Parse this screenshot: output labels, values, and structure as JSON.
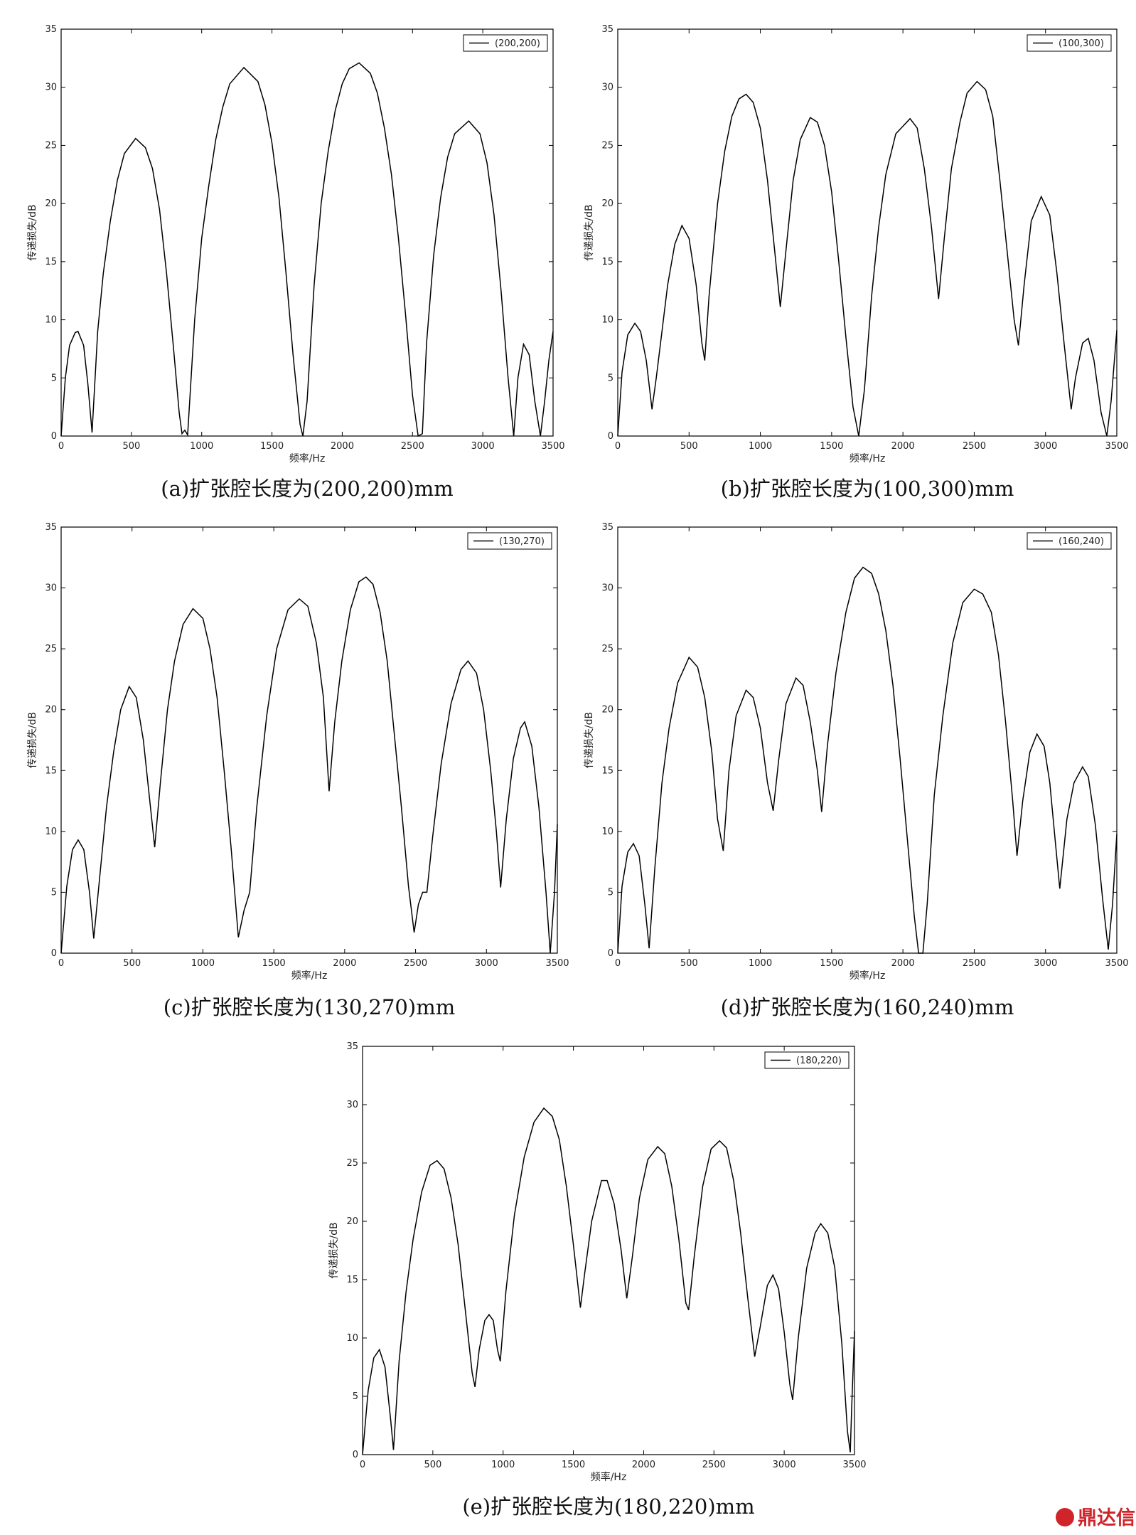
{
  "chart_data": [
    {
      "type": "line",
      "caption": "(a)扩张腔长度为(200,200)mm",
      "xlabel": "频率/Hz",
      "ylabel": "传递损失/dB",
      "legend": "upper right",
      "xlim": [
        0,
        3500
      ],
      "ylim": [
        0,
        35
      ],
      "xticks": [
        0,
        500,
        1000,
        1500,
        2000,
        2500,
        3000,
        3500
      ],
      "yticks": [
        0,
        5,
        10,
        15,
        20,
        25,
        30,
        35
      ],
      "x": [
        0,
        30,
        60,
        100,
        120,
        160,
        190,
        220,
        260,
        300,
        350,
        400,
        450,
        530,
        600,
        650,
        700,
        750,
        800,
        840,
        860,
        880,
        900,
        950,
        1000,
        1050,
        1100,
        1150,
        1200,
        1300,
        1400,
        1450,
        1500,
        1550,
        1600,
        1650,
        1700,
        1720,
        1750,
        1800,
        1850,
        1900,
        1950,
        2000,
        2050,
        2120,
        2200,
        2250,
        2300,
        2350,
        2400,
        2450,
        2500,
        2540,
        2570,
        2600,
        2650,
        2700,
        2750,
        2800,
        2900,
        2980,
        3030,
        3080,
        3130,
        3180,
        3220,
        3250,
        3290,
        3330,
        3370,
        3410,
        3440,
        3470,
        3500
      ],
      "series": [
        {
          "name": "(200,200)",
          "color": "#000000",
          "values": [
            0,
            5,
            7.8,
            8.9,
            9,
            7.8,
            4.5,
            0.3,
            9,
            14,
            18.5,
            22,
            24.3,
            25.6,
            24.8,
            23,
            19.5,
            14,
            7.5,
            2,
            0.2,
            0.5,
            0.1,
            10,
            17,
            21.5,
            25.5,
            28.3,
            30.3,
            31.7,
            30.5,
            28.5,
            25.2,
            20.5,
            14,
            7,
            1,
            0,
            3,
            13,
            20,
            24.5,
            28,
            30.3,
            31.6,
            32.1,
            31.2,
            29.5,
            26.5,
            22.5,
            17,
            10.5,
            3.5,
            0,
            0.2,
            8,
            15.5,
            20.5,
            24,
            26,
            27.1,
            26,
            23.5,
            19,
            12.5,
            5,
            0,
            5,
            7.9,
            7,
            3,
            0,
            3,
            6.5,
            9
          ]
        }
      ]
    },
    {
      "type": "line",
      "caption": "(b)扩张腔长度为(100,300)mm",
      "xlabel": "频率/Hz",
      "ylabel": "传递损失/dB",
      "legend": "upper right",
      "xlim": [
        0,
        3500
      ],
      "ylim": [
        0,
        35
      ],
      "xticks": [
        0,
        500,
        1000,
        1500,
        2000,
        2500,
        3000,
        3500
      ],
      "yticks": [
        0,
        5,
        10,
        15,
        20,
        25,
        30,
        35
      ],
      "x": [
        0,
        30,
        70,
        120,
        160,
        200,
        240,
        270,
        310,
        350,
        400,
        450,
        500,
        550,
        590,
        610,
        640,
        700,
        750,
        800,
        850,
        900,
        950,
        1000,
        1050,
        1100,
        1140,
        1180,
        1230,
        1280,
        1350,
        1400,
        1450,
        1500,
        1550,
        1600,
        1650,
        1690,
        1730,
        1780,
        1830,
        1880,
        1950,
        2050,
        2100,
        2150,
        2200,
        2250,
        2290,
        2340,
        2400,
        2450,
        2520,
        2580,
        2630,
        2680,
        2730,
        2780,
        2810,
        2850,
        2900,
        2970,
        3030,
        3080,
        3130,
        3180,
        3210,
        3260,
        3300,
        3340,
        3390,
        3430,
        3460,
        3500
      ],
      "series": [
        {
          "name": "(100,300)",
          "color": "#000000",
          "values": [
            0,
            5.5,
            8.7,
            9.7,
            9,
            6.5,
            2.3,
            5,
            9,
            13,
            16.5,
            18.1,
            17,
            13,
            8,
            6.5,
            12,
            20,
            24.5,
            27.5,
            29,
            29.4,
            28.7,
            26.5,
            22,
            16,
            11.1,
            16,
            22,
            25.5,
            27.4,
            27,
            25,
            21,
            15,
            8.5,
            2.5,
            0,
            4,
            12,
            18,
            22.5,
            26,
            27.3,
            26.5,
            23,
            18,
            11.8,
            17,
            23,
            27,
            29.5,
            30.5,
            29.8,
            27.5,
            22,
            16,
            10,
            7.8,
            13,
            18.5,
            20.6,
            19,
            14,
            8,
            2.3,
            5,
            8,
            8.4,
            6.5,
            2,
            0,
            3,
            9.1
          ]
        }
      ]
    },
    {
      "type": "line",
      "caption": "(c)扩张腔长度为(130,270)mm",
      "xlabel": "频率/Hz",
      "ylabel": "传递损失/dB",
      "legend": "upper right",
      "xlim": [
        0,
        3500
      ],
      "ylim": [
        0,
        35
      ],
      "xticks": [
        0,
        500,
        1000,
        1500,
        2000,
        2500,
        3000,
        3500
      ],
      "yticks": [
        0,
        5,
        10,
        15,
        20,
        25,
        30,
        35
      ],
      "x": [
        0,
        40,
        80,
        120,
        160,
        200,
        230,
        270,
        320,
        370,
        420,
        480,
        530,
        580,
        630,
        660,
        700,
        750,
        800,
        860,
        930,
        1000,
        1050,
        1100,
        1150,
        1200,
        1250,
        1290,
        1330,
        1380,
        1450,
        1520,
        1600,
        1680,
        1740,
        1800,
        1850,
        1890,
        1930,
        1980,
        2040,
        2100,
        2150,
        2200,
        2250,
        2300,
        2350,
        2400,
        2450,
        2490,
        2520,
        2550,
        2580,
        2620,
        2680,
        2750,
        2820,
        2870,
        2930,
        2980,
        3030,
        3070,
        3100,
        3140,
        3190,
        3240,
        3270,
        3320,
        3370,
        3420,
        3450,
        3480,
        3500
      ],
      "series": [
        {
          "name": "(130,270)",
          "color": "#000000",
          "values": [
            0,
            5.5,
            8.5,
            9.3,
            8.5,
            5,
            1.2,
            6,
            12,
            16.5,
            20,
            21.9,
            21,
            17.5,
            12,
            8.7,
            14,
            20,
            24,
            27,
            28.3,
            27.5,
            25,
            21,
            15,
            8.5,
            1.3,
            3.5,
            5,
            12,
            19.5,
            25,
            28.2,
            29.1,
            28.5,
            25.5,
            21,
            13.3,
            19,
            24,
            28.2,
            30.5,
            30.9,
            30.3,
            28,
            24,
            18,
            12,
            5.5,
            1.7,
            4,
            5,
            5,
            9.5,
            15.5,
            20.5,
            23.3,
            24,
            23,
            20,
            15,
            10,
            5.4,
            11,
            16,
            18.5,
            19,
            17,
            12,
            5,
            0,
            5,
            10.6
          ]
        }
      ]
    },
    {
      "type": "line",
      "caption": "(d)扩张腔长度为(160,240)mm",
      "xlabel": "频率/Hz",
      "ylabel": "传递损失/dB",
      "legend": "upper right",
      "xlim": [
        0,
        3500
      ],
      "ylim": [
        0,
        35
      ],
      "xticks": [
        0,
        500,
        1000,
        1500,
        2000,
        2500,
        3000,
        3500
      ],
      "yticks": [
        0,
        5,
        10,
        15,
        20,
        25,
        30,
        35
      ],
      "x": [
        0,
        30,
        70,
        110,
        150,
        190,
        220,
        260,
        310,
        360,
        420,
        500,
        560,
        610,
        660,
        700,
        740,
        780,
        830,
        900,
        950,
        1000,
        1050,
        1090,
        1130,
        1180,
        1250,
        1300,
        1350,
        1400,
        1430,
        1470,
        1530,
        1600,
        1660,
        1720,
        1780,
        1830,
        1880,
        1930,
        1980,
        2030,
        2080,
        2110,
        2140,
        2170,
        2220,
        2280,
        2350,
        2420,
        2500,
        2560,
        2620,
        2670,
        2720,
        2770,
        2800,
        2840,
        2890,
        2940,
        2990,
        3030,
        3070,
        3100,
        3150,
        3200,
        3260,
        3300,
        3350,
        3400,
        3440,
        3470,
        3500
      ],
      "series": [
        {
          "name": "(160,240)",
          "color": "#000000",
          "values": [
            0,
            5.5,
            8.3,
            9,
            8,
            4,
            0.4,
            7,
            14,
            18.5,
            22.2,
            24.3,
            23.5,
            21,
            16.5,
            11,
            8.4,
            15,
            19.5,
            21.6,
            21,
            18.5,
            14,
            11.7,
            16,
            20.5,
            22.6,
            22,
            19,
            15,
            11.6,
            17,
            23,
            28,
            30.8,
            31.7,
            31.2,
            29.5,
            26.5,
            22,
            16,
            9.5,
            3,
            0,
            0,
            4,
            13,
            19.5,
            25.5,
            28.8,
            29.9,
            29.5,
            28,
            24.5,
            19,
            12.5,
            8,
            12.5,
            16.5,
            18,
            17,
            14,
            9,
            5.3,
            11,
            14,
            15.3,
            14.5,
            10.5,
            4.5,
            0.3,
            4,
            9.8
          ]
        }
      ]
    },
    {
      "type": "line",
      "caption": "(e)扩张腔长度为(180,220)mm",
      "xlabel": "频率/Hz",
      "ylabel": "传递损失/dB",
      "legend": "upper right",
      "xlim": [
        0,
        3500
      ],
      "ylim": [
        0,
        35
      ],
      "xticks": [
        0,
        500,
        1000,
        1500,
        2000,
        2500,
        3000,
        3500
      ],
      "yticks": [
        0,
        5,
        10,
        15,
        20,
        25,
        30,
        35
      ],
      "x": [
        0,
        40,
        80,
        120,
        160,
        200,
        220,
        260,
        310,
        360,
        420,
        480,
        530,
        580,
        630,
        680,
        730,
        780,
        800,
        830,
        870,
        900,
        930,
        960,
        980,
        1020,
        1080,
        1150,
        1220,
        1290,
        1350,
        1400,
        1450,
        1500,
        1550,
        1580,
        1630,
        1700,
        1740,
        1790,
        1840,
        1880,
        1920,
        1970,
        2030,
        2100,
        2150,
        2200,
        2250,
        2300,
        2320,
        2360,
        2420,
        2480,
        2540,
        2590,
        2640,
        2690,
        2740,
        2790,
        2830,
        2880,
        2920,
        2960,
        3000,
        3040,
        3060,
        3100,
        3160,
        3220,
        3260,
        3310,
        3360,
        3410,
        3450,
        3470,
        3480,
        3500
      ],
      "series": [
        {
          "name": "(180,220)",
          "color": "#000000",
          "values": [
            0,
            5.5,
            8.3,
            9,
            7.5,
            3,
            0.4,
            8,
            14,
            18.5,
            22.5,
            24.8,
            25.2,
            24.5,
            22,
            18,
            12.5,
            7,
            5.8,
            9,
            11.5,
            12,
            11.5,
            9,
            8,
            14,
            20.5,
            25.5,
            28.5,
            29.7,
            29,
            27,
            23,
            18,
            12.6,
            15.5,
            20,
            23.5,
            23.5,
            21.5,
            17.5,
            13.4,
            17,
            22,
            25.3,
            26.4,
            25.8,
            23,
            18.5,
            13,
            12.4,
            17,
            23,
            26.2,
            26.9,
            26.3,
            23.5,
            19,
            13.5,
            8.4,
            11,
            14.5,
            15.4,
            14.2,
            10.5,
            6,
            4.7,
            10,
            16,
            19,
            19.8,
            19,
            16,
            9.5,
            2,
            0.2,
            4,
            10.6
          ]
        }
      ]
    }
  ],
  "watermark": "鼎达信"
}
